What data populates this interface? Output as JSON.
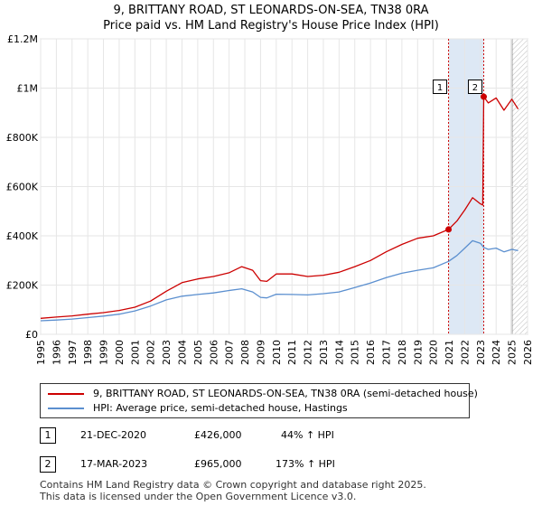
{
  "title_line1": "9, BRITTANY ROAD, ST LEONARDS-ON-SEA, TN38 0RA",
  "title_line2": "Price paid vs. HM Land Registry's House Price Index (HPI)",
  "legend": {
    "property": "9, BRITTANY ROAD, ST LEONARDS-ON-SEA, TN38 0RA (semi-detached house)",
    "hpi": "HPI: Average price, semi-detached house, Hastings"
  },
  "transactions": [
    {
      "num": "1",
      "date": "21-DEC-2020",
      "price": "£426,000",
      "hpi_change": "44% ↑ HPI"
    },
    {
      "num": "2",
      "date": "17-MAR-2023",
      "price": "£965,000",
      "hpi_change": "173% ↑ HPI"
    }
  ],
  "footer_line1": "Contains HM Land Registry data © Crown copyright and database right 2025.",
  "footer_line2": "This data is licensed under the Open Government Licence v3.0.",
  "colors": {
    "property": "#cc0000",
    "hpi": "#5b8fcf",
    "shade": "#dde8f5",
    "vline": "#cc0000"
  },
  "chart_data": {
    "type": "line",
    "title": "9, BRITTANY ROAD, ST LEONARDS-ON-SEA, TN38 0RA — Price paid vs. HM Land Registry's House Price Index (HPI)",
    "xlabel": "",
    "ylabel": "",
    "xlim": [
      1995,
      2026
    ],
    "ylim": [
      0,
      1200000
    ],
    "yticks": [
      0,
      200000,
      400000,
      600000,
      800000,
      1000000,
      1200000
    ],
    "ytick_labels": [
      "£0",
      "£200K",
      "£400K",
      "£600K",
      "£800K",
      "£1M",
      "£1.2M"
    ],
    "xticks": [
      1995,
      1996,
      1997,
      1998,
      1999,
      2000,
      2001,
      2002,
      2003,
      2004,
      2005,
      2006,
      2007,
      2008,
      2009,
      2010,
      2011,
      2012,
      2013,
      2014,
      2015,
      2016,
      2017,
      2018,
      2019,
      2020,
      2021,
      2022,
      2023,
      2024,
      2025,
      2026
    ],
    "grid": true,
    "shaded_range": [
      2020.97,
      2023.21
    ],
    "forecast_start": 2025.0,
    "series": [
      {
        "name": "9, BRITTANY ROAD, ST LEONARDS-ON-SEA, TN38 0RA (semi-detached house)",
        "x": [
          1995,
          1996,
          1997,
          1998,
          1999,
          2000,
          2001,
          2002,
          2003,
          2004,
          2005,
          2006,
          2007,
          2007.8,
          2008.5,
          2009,
          2009.4,
          2010,
          2011,
          2012,
          2013,
          2014,
          2015,
          2016,
          2017,
          2018,
          2019,
          2020,
          2020.97,
          2021.5,
          2022,
          2022.5,
          2023,
          2023.15,
          2023.21,
          2023.5,
          2024,
          2024.5,
          2025,
          2025.4
        ],
        "values": [
          65000,
          70000,
          75000,
          82000,
          88000,
          97000,
          110000,
          135000,
          175000,
          210000,
          225000,
          235000,
          250000,
          275000,
          260000,
          218000,
          215000,
          245000,
          245000,
          235000,
          240000,
          252000,
          275000,
          300000,
          335000,
          365000,
          390000,
          400000,
          426000,
          460000,
          505000,
          555000,
          530000,
          525000,
          965000,
          940000,
          960000,
          910000,
          955000,
          915000
        ]
      },
      {
        "name": "HPI: Average price, semi-detached house, Hastings",
        "x": [
          1995,
          1996,
          1997,
          1998,
          1999,
          2000,
          2001,
          2002,
          2003,
          2004,
          2005,
          2006,
          2007,
          2007.8,
          2008.5,
          2009,
          2009.4,
          2010,
          2011,
          2012,
          2013,
          2014,
          2015,
          2016,
          2017,
          2018,
          2019,
          2020,
          2020.97,
          2021.5,
          2022,
          2022.5,
          2023,
          2023.21,
          2023.5,
          2024,
          2024.5,
          2025,
          2025.4
        ],
        "values": [
          55000,
          58000,
          62000,
          68000,
          74000,
          82000,
          95000,
          115000,
          140000,
          155000,
          162000,
          168000,
          178000,
          185000,
          172000,
          150000,
          148000,
          163000,
          162000,
          160000,
          165000,
          172000,
          190000,
          208000,
          230000,
          248000,
          260000,
          270000,
          296000,
          320000,
          350000,
          380000,
          370000,
          353000,
          345000,
          350000,
          335000,
          345000,
          340000
        ]
      }
    ],
    "annotations": [
      {
        "label": "1",
        "x": 2020.97,
        "y": 426000
      },
      {
        "label": "2",
        "x": 2023.21,
        "y": 965000
      }
    ]
  }
}
